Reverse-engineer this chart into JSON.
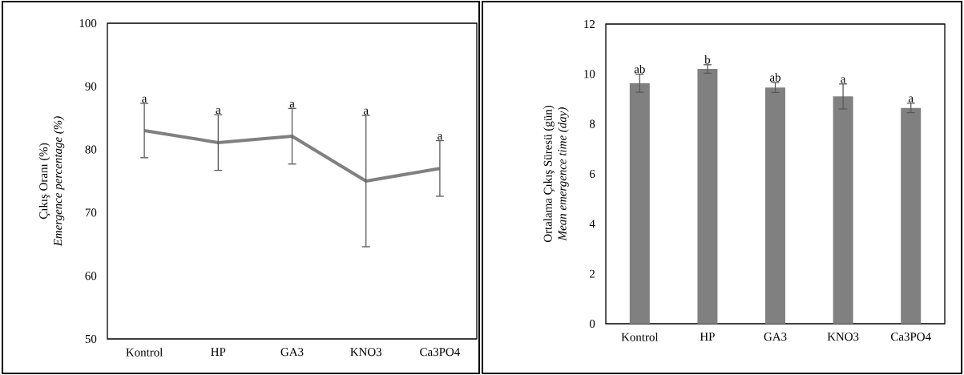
{
  "chart_data": [
    {
      "type": "line",
      "ylabel": "Çıkış Oranı (%)\n*Emergence percentage (%)*",
      "categories": [
        "Kontrol",
        "HP",
        "GA3",
        "KNO3",
        "Ca3PO4"
      ],
      "series": [
        {
          "color": "#808080",
          "values": [
            83.0,
            81.1,
            82.1,
            75.0,
            77.0
          ],
          "errors": [
            4.3,
            4.4,
            4.4,
            10.4,
            4.4
          ]
        }
      ],
      "ylim": [
        50,
        100
      ],
      "yticks": [
        50,
        60,
        70,
        80,
        90,
        100
      ],
      "marker": "none",
      "line_style": "solid",
      "annotations": [
        "a",
        "a",
        "a",
        "a",
        "a"
      ]
    },
    {
      "type": "bar",
      "ylabel": "Ortalama Çıkış Süresü (gün)\n*Mean emergence time (day)*",
      "categories": [
        "Kontrol",
        "HP",
        "GA3",
        "KNO3",
        "Ca3PO4"
      ],
      "series": [
        {
          "color": "#808080",
          "values": [
            9.63,
            10.2,
            9.46,
            9.1,
            8.64
          ],
          "errors": [
            0.36,
            0.17,
            0.2,
            0.5,
            0.19
          ]
        }
      ],
      "ylim": [
        0,
        12
      ],
      "yticks": [
        0,
        2,
        4,
        6,
        8,
        10,
        12
      ],
      "annotations": [
        "ab",
        "b",
        "ab",
        "a",
        "a"
      ]
    }
  ]
}
